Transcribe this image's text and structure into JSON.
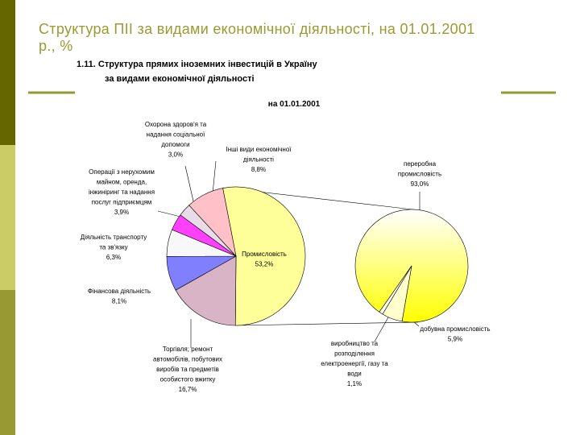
{
  "slide_title": "Структура ПІІ за видами економічної діяльності, на 01.01.2001 р., %",
  "chart_data": {
    "type": "pie",
    "title": [
      "1.11. Структура прямих іноземних інвестицій в Україну",
      "за видами економічної діяльності"
    ],
    "subtitle": "на 01.01.2001",
    "categories": [
      "Промисловість",
      "Торгівля; ремонт\nавтомобілів, побутових\nвиробів та предметів\nособистого вжитку",
      "Фінансова діяльність",
      "Діяльність транспорту\nта зв'язку",
      "Операції з нерухомим\nмайном, оренда,\nінжиніринг та надання\nпослуг підприємцям",
      "Охорона здоров'я та\nнадання соціальної\nдопомоги",
      "Інші види економічної\nдіяльності"
    ],
    "values": [
      53.2,
      16.7,
      8.1,
      6.3,
      3.9,
      3.0,
      8.8
    ],
    "value_labels": [
      "53,2%",
      "16,7%",
      "8,1%",
      "6,3%",
      "3,9%",
      "3,0%",
      "8,8%"
    ],
    "colors": [
      "#ffff99",
      "#d9b3c6",
      "#8080ff",
      "#f8f8f8",
      "#ff40ff",
      "#e8dce8",
      "#ffc0c8"
    ],
    "secondary": {
      "categories": [
        "переробна\nпромисловість",
        "добувна промисловість",
        "виробництво та\nрозподілення\nелектроенергії, газу та\nводи"
      ],
      "values": [
        93.0,
        5.9,
        1.1
      ],
      "value_labels": [
        "93,0%",
        "5,9%",
        "1,1%"
      ],
      "colors": [
        "#ffff00",
        "#ffffcc",
        "#ffffff"
      ]
    }
  }
}
